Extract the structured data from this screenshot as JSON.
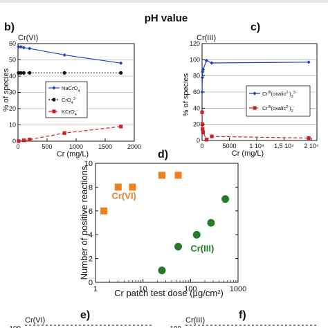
{
  "top_label": "pH value",
  "panel_labels": {
    "b": "b)",
    "c": "c)",
    "d": "d)",
    "e": "e)",
    "f": "f)"
  },
  "bottom_titles": {
    "e": "Cr(VI)",
    "f": "Cr(III)",
    "e_tick": "100",
    "f_tick": "100"
  },
  "chart_data": [
    {
      "id": "b",
      "type": "line",
      "title": "Cr(VI)",
      "xlabel": "Cr (mg/L)",
      "ylabel": "% of species",
      "xlim": [
        0,
        2000
      ],
      "ylim": [
        0,
        60
      ],
      "xticks": [
        0,
        500,
        1000,
        1500,
        2000
      ],
      "yticks": [
        0,
        10,
        20,
        30,
        40,
        50,
        60
      ],
      "legend_position": "center-right",
      "series": [
        {
          "name": "NaCrO4-",
          "color": "#1f3fbf",
          "marker": "diamond",
          "dash": "solid",
          "x": [
            10,
            50,
            100,
            200,
            800,
            1770
          ],
          "y": [
            58,
            58,
            57.5,
            57,
            53,
            48
          ]
        },
        {
          "name": "CrO4 2-",
          "color": "#111111",
          "marker": "circle",
          "dash": "dotted",
          "x": [
            10,
            50,
            100,
            200,
            800,
            1770
          ],
          "y": [
            42,
            42,
            42,
            42,
            42,
            42
          ]
        },
        {
          "name": "KCrO4-",
          "color": "#cc2020",
          "marker": "square",
          "dash": "dashed",
          "x": [
            10,
            100,
            200,
            800,
            1770
          ],
          "y": [
            0,
            0.5,
            1,
            5,
            9
          ]
        }
      ]
    },
    {
      "id": "c",
      "type": "line",
      "title": "Cr(III)",
      "xlabel": "Cr (mg/L)",
      "ylabel": "% of species",
      "xlim": [
        0,
        21000
      ],
      "ylim": [
        0,
        120
      ],
      "xticks": [
        0,
        5000,
        10000,
        15000,
        20000
      ],
      "xtick_labels": [
        "0",
        "5000",
        "1 10⁴",
        "1.5 10⁴",
        "2 10⁴"
      ],
      "yticks": [
        0,
        20,
        40,
        60,
        80,
        100,
        120
      ],
      "legend_position": "center-right",
      "series": [
        {
          "name": "CrIII(oxalic2-)3 3-",
          "color": "#1f3fbf",
          "marker": "diamond",
          "dash": "solid",
          "x": [
            10,
            50,
            100,
            200,
            800,
            1770,
            19500
          ],
          "y": [
            60,
            78,
            85,
            88,
            99,
            96,
            97
          ]
        },
        {
          "name": "CrIII(oxalic2-)2 -",
          "color": "#cc2020",
          "marker": "square",
          "dash": "dashed",
          "x": [
            10,
            50,
            100,
            200,
            800,
            1770,
            19500
          ],
          "y": [
            35,
            20,
            14,
            10,
            1,
            5,
            3
          ]
        }
      ]
    },
    {
      "id": "d",
      "type": "scatter",
      "xscale": "log",
      "xlabel": "Cr patch test dose (μg/cm²)",
      "ylabel": "Number of positive reactions",
      "xlim": [
        1,
        1000
      ],
      "ylim": [
        0,
        10
      ],
      "xticks": [
        1,
        10,
        100,
        1000
      ],
      "yticks": [
        0,
        2,
        4,
        6,
        8,
        10
      ],
      "series": [
        {
          "name": "Cr(VI)",
          "color": "#f07f1e",
          "marker": "square",
          "x": [
            1.5,
            3,
            6,
            25,
            55
          ],
          "y": [
            6,
            8,
            8,
            9,
            9
          ]
        },
        {
          "name": "Cr(III)",
          "color": "#237a27",
          "marker": "circle",
          "x": [
            25,
            55,
            135,
            270,
            540
          ],
          "y": [
            1,
            3,
            4,
            5,
            7
          ]
        }
      ],
      "annotations": [
        {
          "text": "Cr(VI)",
          "color": "#f07f1e",
          "x": 2.2,
          "y": 7.0
        },
        {
          "text": "Cr(III)",
          "color": "#237a27",
          "x": 100,
          "y": 2.6
        }
      ]
    }
  ]
}
